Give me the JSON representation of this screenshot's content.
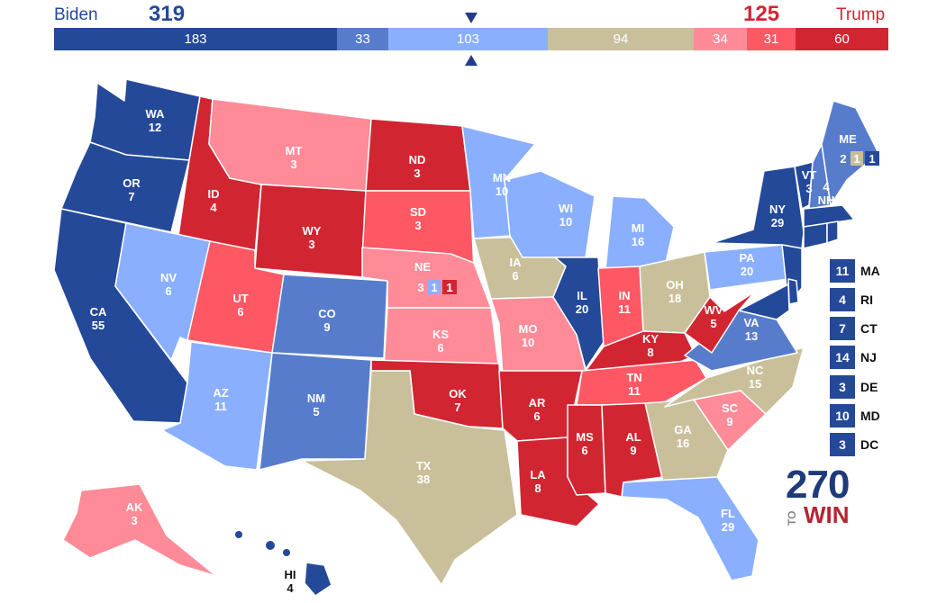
{
  "header": {
    "left_candidate": "Biden",
    "left_total": "319",
    "right_candidate": "Trump",
    "right_total": "125"
  },
  "colors": {
    "safe_d": "#244999",
    "likely_d": "#577ccc",
    "lean_d": "#8aafff",
    "tossup": "#c9c09b",
    "lean_r": "#ff8b98",
    "likely_r": "#ff5865",
    "safe_r": "#d22532"
  },
  "bar_segments": [
    {
      "category": "safe_d",
      "value": "183",
      "color": "#244999"
    },
    {
      "category": "likely_d",
      "value": "33",
      "color": "#577ccc"
    },
    {
      "category": "lean_d",
      "value": "103",
      "color": "#8aafff"
    },
    {
      "category": "tossup",
      "value": "94",
      "color": "#c9c09b"
    },
    {
      "category": "lean_r",
      "value": "34",
      "color": "#ff8b98"
    },
    {
      "category": "likely_r",
      "value": "31",
      "color": "#ff5865"
    },
    {
      "category": "safe_r",
      "value": "60",
      "color": "#d22532"
    }
  ],
  "states": [
    {
      "abbr": "WA",
      "ev": "12",
      "rating": "safe_d"
    },
    {
      "abbr": "OR",
      "ev": "7",
      "rating": "safe_d"
    },
    {
      "abbr": "CA",
      "ev": "55",
      "rating": "safe_d"
    },
    {
      "abbr": "ID",
      "ev": "4",
      "rating": "safe_r"
    },
    {
      "abbr": "NV",
      "ev": "6",
      "rating": "lean_d"
    },
    {
      "abbr": "MT",
      "ev": "3",
      "rating": "lean_r"
    },
    {
      "abbr": "WY",
      "ev": "3",
      "rating": "safe_r"
    },
    {
      "abbr": "UT",
      "ev": "6",
      "rating": "likely_r"
    },
    {
      "abbr": "AZ",
      "ev": "11",
      "rating": "lean_d"
    },
    {
      "abbr": "CO",
      "ev": "9",
      "rating": "likely_d"
    },
    {
      "abbr": "NM",
      "ev": "5",
      "rating": "likely_d"
    },
    {
      "abbr": "ND",
      "ev": "3",
      "rating": "safe_r"
    },
    {
      "abbr": "SD",
      "ev": "3",
      "rating": "likely_r"
    },
    {
      "abbr": "NE",
      "ev": "3",
      "rating": "lean_r"
    },
    {
      "abbr": "KS",
      "ev": "6",
      "rating": "lean_r"
    },
    {
      "abbr": "OK",
      "ev": "7",
      "rating": "safe_r"
    },
    {
      "abbr": "TX",
      "ev": "38",
      "rating": "tossup"
    },
    {
      "abbr": "MN",
      "ev": "10",
      "rating": "lean_d"
    },
    {
      "abbr": "IA",
      "ev": "6",
      "rating": "tossup"
    },
    {
      "abbr": "MO",
      "ev": "10",
      "rating": "lean_r"
    },
    {
      "abbr": "AR",
      "ev": "6",
      "rating": "safe_r"
    },
    {
      "abbr": "LA",
      "ev": "8",
      "rating": "safe_r"
    },
    {
      "abbr": "WI",
      "ev": "10",
      "rating": "lean_d"
    },
    {
      "abbr": "IL",
      "ev": "20",
      "rating": "safe_d"
    },
    {
      "abbr": "MI",
      "ev": "16",
      "rating": "lean_d"
    },
    {
      "abbr": "IN",
      "ev": "11",
      "rating": "likely_r"
    },
    {
      "abbr": "OH",
      "ev": "18",
      "rating": "tossup"
    },
    {
      "abbr": "KY",
      "ev": "8",
      "rating": "safe_r"
    },
    {
      "abbr": "TN",
      "ev": "11",
      "rating": "likely_r"
    },
    {
      "abbr": "MS",
      "ev": "6",
      "rating": "safe_r"
    },
    {
      "abbr": "AL",
      "ev": "9",
      "rating": "safe_r"
    },
    {
      "abbr": "GA",
      "ev": "16",
      "rating": "tossup"
    },
    {
      "abbr": "FL",
      "ev": "29",
      "rating": "lean_d"
    },
    {
      "abbr": "SC",
      "ev": "9",
      "rating": "lean_r"
    },
    {
      "abbr": "NC",
      "ev": "15",
      "rating": "tossup"
    },
    {
      "abbr": "VA",
      "ev": "13",
      "rating": "likely_d"
    },
    {
      "abbr": "WV",
      "ev": "5",
      "rating": "safe_r"
    },
    {
      "abbr": "PA",
      "ev": "20",
      "rating": "lean_d"
    },
    {
      "abbr": "NY",
      "ev": "29",
      "rating": "safe_d"
    },
    {
      "abbr": "VT",
      "ev": "3",
      "rating": "safe_d"
    },
    {
      "abbr": "NH",
      "ev": "4",
      "rating": "likely_d"
    },
    {
      "abbr": "ME",
      "ev": "2",
      "rating": "likely_d"
    },
    {
      "abbr": "AK",
      "ev": "3",
      "rating": "lean_r"
    },
    {
      "abbr": "HI",
      "ev": "4",
      "rating": "safe_d"
    }
  ],
  "split_districts": {
    "ME": [
      {
        "value": "1",
        "rating": "tossup"
      },
      {
        "value": "1",
        "rating": "safe_d"
      }
    ],
    "NE": [
      {
        "value": "1",
        "rating": "lean_d"
      },
      {
        "value": "1",
        "rating": "safe_r"
      }
    ]
  },
  "small_states": [
    {
      "abbr": "MA",
      "ev": "11",
      "rating": "safe_d"
    },
    {
      "abbr": "RI",
      "ev": "4",
      "rating": "safe_d"
    },
    {
      "abbr": "CT",
      "ev": "7",
      "rating": "safe_d"
    },
    {
      "abbr": "NJ",
      "ev": "14",
      "rating": "safe_d"
    },
    {
      "abbr": "DE",
      "ev": "3",
      "rating": "safe_d"
    },
    {
      "abbr": "MD",
      "ev": "10",
      "rating": "safe_d"
    },
    {
      "abbr": "DC",
      "ev": "3",
      "rating": "safe_d"
    }
  ],
  "logo": {
    "number": "270",
    "to": "TO",
    "win": "WIN"
  }
}
